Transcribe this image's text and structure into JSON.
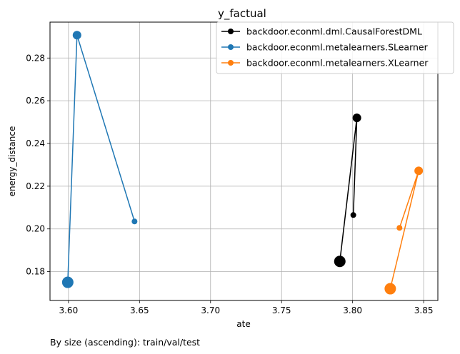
{
  "chart_data": {
    "type": "line",
    "title": "y_factual",
    "xlabel": "ate",
    "ylabel": "energy_distance",
    "xlim": [
      3.587,
      3.86
    ],
    "ylim": [
      0.1665,
      0.2968
    ],
    "xticks": [
      3.6,
      3.65,
      3.7,
      3.75,
      3.8,
      3.85
    ],
    "xtick_labels": [
      "3.60",
      "3.65",
      "3.70",
      "3.75",
      "3.80",
      "3.85"
    ],
    "yticks": [
      0.18,
      0.2,
      0.22,
      0.24,
      0.26,
      0.28
    ],
    "ytick_labels": [
      "0.18",
      "0.20",
      "0.22",
      "0.24",
      "0.26",
      "0.28"
    ],
    "grid": true,
    "legend_position": "top-right",
    "series": [
      {
        "name": "backdoor.econml.dml.CausalForestDML",
        "color": "#000000",
        "points": [
          {
            "x": 3.8005,
            "y": 0.2065,
            "size": "small"
          },
          {
            "x": 3.803,
            "y": 0.252,
            "size": "medium"
          },
          {
            "x": 3.791,
            "y": 0.1848,
            "size": "large"
          }
        ]
      },
      {
        "name": "backdoor.econml.metalearners.SLearner",
        "color": "#1f77b4",
        "points": [
          {
            "x": 3.6465,
            "y": 0.2035,
            "size": "small"
          },
          {
            "x": 3.606,
            "y": 0.2907,
            "size": "medium"
          },
          {
            "x": 3.5995,
            "y": 0.175,
            "size": "large"
          }
        ]
      },
      {
        "name": "backdoor.econml.metalearners.XLearner",
        "color": "#ff7f0e",
        "points": [
          {
            "x": 3.833,
            "y": 0.2005,
            "size": "small"
          },
          {
            "x": 3.8465,
            "y": 0.2272,
            "size": "medium"
          },
          {
            "x": 3.8265,
            "y": 0.172,
            "size": "large"
          }
        ]
      }
    ],
    "annotation": "By size (ascending): train/val/test"
  }
}
